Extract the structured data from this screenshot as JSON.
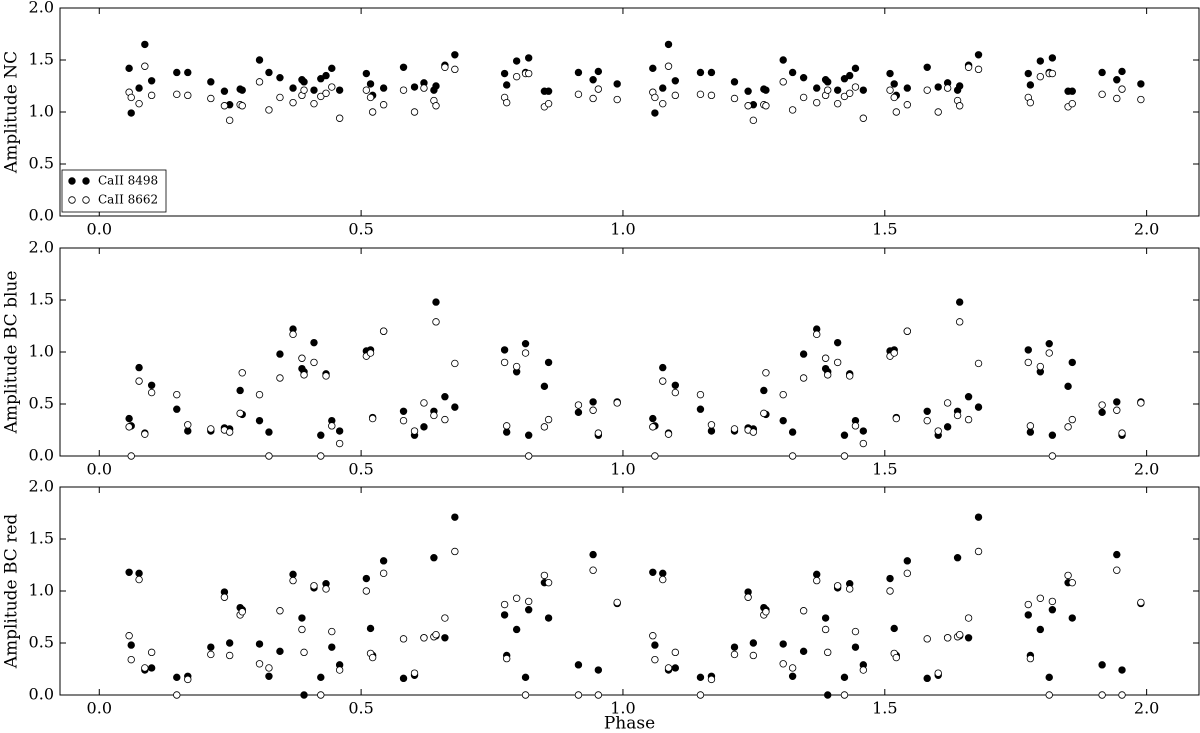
{
  "chart_data": [
    {
      "type": "scatter",
      "ylabel": "Amplitude NC",
      "xlim": [
        -0.075,
        2.1
      ],
      "ylim": [
        0,
        2
      ],
      "xticks": [
        {
          "value": 0,
          "label": "0.0"
        },
        0.5,
        {
          "value": 1,
          "label": "1.0"
        },
        1.5,
        {
          "value": 2,
          "label": "2.0"
        }
      ],
      "yticks": [
        {
          "value": 0,
          "label": "0.0"
        },
        0.5,
        {
          "value": 1,
          "label": "1.0"
        },
        1.5,
        {
          "value": 2,
          "label": "2.0"
        }
      ],
      "legend": "lower left",
      "x": [
        0.057,
        0.061,
        0.076,
        0.087,
        0.1,
        0.148,
        0.169,
        0.213,
        0.239,
        0.249,
        0.269,
        0.273,
        0.306,
        0.324,
        0.345,
        0.37,
        0.387,
        0.391,
        0.41,
        0.423,
        0.433,
        0.444,
        0.459,
        0.51,
        0.518,
        0.522,
        0.543,
        0.581,
        0.602,
        0.62,
        0.639,
        0.643,
        0.66,
        0.679,
        0.774,
        0.778,
        0.797,
        0.814,
        0.82,
        0.85,
        0.858,
        0.915,
        0.943,
        0.953,
        0.989,
        1.057,
        1.061,
        1.076,
        1.087,
        1.1,
        1.148,
        1.169,
        1.213,
        1.239,
        1.249,
        1.269,
        1.273,
        1.306,
        1.324,
        1.345,
        1.37,
        1.387,
        1.391,
        1.41,
        1.423,
        1.433,
        1.444,
        1.459,
        1.51,
        1.518,
        1.522,
        1.543,
        1.581,
        1.602,
        1.62,
        1.639,
        1.643,
        1.66,
        1.679,
        1.774,
        1.778,
        1.797,
        1.814,
        1.82,
        1.85,
        1.858,
        1.915,
        1.943,
        1.953,
        1.989
      ],
      "series": [
        {
          "name": "CaII 8498",
          "color": "#000000",
          "markerfacecolor": "#000000",
          "values": [
            1.42,
            0.99,
            1.23,
            1.65,
            1.3,
            1.38,
            1.38,
            1.29,
            1.2,
            1.07,
            1.22,
            1.21,
            1.5,
            1.38,
            1.33,
            1.23,
            1.31,
            1.29,
            1.21,
            1.32,
            1.35,
            1.42,
            1.21,
            1.37,
            1.27,
            1.16,
            1.23,
            1.43,
            1.24,
            1.28,
            1.21,
            1.25,
            1.45,
            1.55,
            1.37,
            1.26,
            1.49,
            1.38,
            1.52,
            1.2,
            1.2,
            1.38,
            1.31,
            1.39,
            1.27,
            1.42,
            0.99,
            1.23,
            1.65,
            1.3,
            1.38,
            1.38,
            1.29,
            1.2,
            1.07,
            1.22,
            1.21,
            1.5,
            1.38,
            1.33,
            1.23,
            1.31,
            1.29,
            1.21,
            1.32,
            1.35,
            1.42,
            1.21,
            1.37,
            1.27,
            1.16,
            1.23,
            1.43,
            1.24,
            1.28,
            1.21,
            1.25,
            1.45,
            1.55,
            1.37,
            1.26,
            1.49,
            1.38,
            1.52,
            1.2,
            1.2,
            1.38,
            1.31,
            1.39,
            1.27
          ]
        },
        {
          "name": "CaII 8662",
          "color": "#000000",
          "markerfacecolor": "#ffffff",
          "values": [
            1.19,
            1.14,
            1.08,
            1.44,
            1.16,
            1.17,
            1.16,
            1.13,
            1.06,
            0.92,
            1.07,
            1.06,
            1.29,
            1.02,
            1.14,
            1.09,
            1.16,
            1.21,
            1.08,
            1.15,
            1.18,
            1.24,
            0.94,
            1.21,
            1.14,
            1.0,
            1.07,
            1.21,
            1.0,
            1.23,
            1.11,
            1.06,
            1.43,
            1.41,
            1.14,
            1.09,
            1.34,
            1.37,
            1.37,
            1.05,
            1.08,
            1.17,
            1.13,
            1.22,
            1.12,
            1.19,
            1.14,
            1.08,
            1.44,
            1.16,
            1.17,
            1.16,
            1.13,
            1.06,
            0.92,
            1.07,
            1.06,
            1.29,
            1.02,
            1.14,
            1.09,
            1.16,
            1.21,
            1.08,
            1.15,
            1.18,
            1.24,
            0.94,
            1.21,
            1.14,
            1.0,
            1.07,
            1.21,
            1.0,
            1.23,
            1.11,
            1.06,
            1.43,
            1.41,
            1.14,
            1.09,
            1.34,
            1.37,
            1.37,
            1.05,
            1.08,
            1.17,
            1.13,
            1.22,
            1.12
          ]
        }
      ]
    },
    {
      "type": "scatter",
      "ylabel": "Amplitude BC blue",
      "xlim": [
        -0.075,
        2.1
      ],
      "ylim": [
        0,
        2
      ],
      "xticks": [
        {
          "value": 0,
          "label": "0.0"
        },
        0.5,
        {
          "value": 1,
          "label": "1.0"
        },
        1.5,
        {
          "value": 2,
          "label": "2.0"
        }
      ],
      "yticks": [
        {
          "value": 0,
          "label": "0.0"
        },
        0.5,
        {
          "value": 1,
          "label": "1.0"
        },
        1.5,
        {
          "value": 2,
          "label": "2.0"
        }
      ],
      "x": [
        0.057,
        0.061,
        0.076,
        0.087,
        0.1,
        0.148,
        0.169,
        0.213,
        0.239,
        0.249,
        0.269,
        0.273,
        0.306,
        0.324,
        0.345,
        0.37,
        0.387,
        0.391,
        0.41,
        0.423,
        0.433,
        0.444,
        0.459,
        0.51,
        0.518,
        0.522,
        0.543,
        0.581,
        0.602,
        0.62,
        0.639,
        0.643,
        0.66,
        0.679,
        0.774,
        0.778,
        0.797,
        0.814,
        0.82,
        0.85,
        0.858,
        0.915,
        0.943,
        0.953,
        0.989,
        1.057,
        1.061,
        1.076,
        1.087,
        1.1,
        1.148,
        1.169,
        1.213,
        1.239,
        1.249,
        1.269,
        1.273,
        1.306,
        1.324,
        1.345,
        1.37,
        1.387,
        1.391,
        1.41,
        1.423,
        1.433,
        1.444,
        1.459,
        1.51,
        1.518,
        1.522,
        1.543,
        1.581,
        1.602,
        1.62,
        1.639,
        1.643,
        1.66,
        1.679,
        1.774,
        1.778,
        1.797,
        1.814,
        1.82,
        1.85,
        1.858,
        1.915,
        1.943,
        1.953,
        1.989
      ],
      "series": [
        {
          "color": "#000000",
          "markerfacecolor": "#000000",
          "values": [
            0.36,
            0.29,
            0.85,
            0.22,
            0.68,
            0.45,
            0.24,
            0.24,
            0.27,
            0.26,
            0.63,
            0.4,
            0.34,
            0.23,
            0.98,
            1.22,
            0.84,
            0.81,
            1.09,
            0.2,
            0.79,
            0.34,
            0.24,
            1.01,
            1.02,
            0.37,
            1.2,
            0.43,
            0.2,
            0.28,
            0.43,
            1.48,
            0.57,
            0.47,
            1.02,
            0.23,
            0.81,
            1.08,
            0.2,
            0.67,
            0.9,
            0.42,
            0.52,
            0.2,
            0.52,
            0.36,
            0.29,
            0.85,
            0.22,
            0.68,
            0.45,
            0.24,
            0.24,
            0.27,
            0.26,
            0.63,
            0.4,
            0.34,
            0.23,
            0.98,
            1.22,
            0.84,
            0.81,
            1.09,
            0.2,
            0.79,
            0.34,
            0.24,
            1.01,
            1.02,
            0.37,
            1.2,
            0.43,
            0.2,
            0.28,
            0.43,
            1.48,
            0.57,
            0.47,
            1.02,
            0.23,
            0.81,
            1.08,
            0.2,
            0.67,
            0.9,
            0.42,
            0.52,
            0.2,
            0.52
          ]
        },
        {
          "color": "#000000",
          "markerfacecolor": "#ffffff",
          "values": [
            0.28,
            0.0,
            0.72,
            0.21,
            0.61,
            0.59,
            0.3,
            0.26,
            0.25,
            0.23,
            0.41,
            0.8,
            0.59,
            0.0,
            0.75,
            1.17,
            0.94,
            0.78,
            0.9,
            0.0,
            0.77,
            0.29,
            0.12,
            0.96,
            0.99,
            0.36,
            1.2,
            0.34,
            0.24,
            0.51,
            0.39,
            1.29,
            0.35,
            0.89,
            0.9,
            0.29,
            0.86,
            0.99,
            0.0,
            0.28,
            0.35,
            0.49,
            0.44,
            0.22,
            0.51,
            0.28,
            0.0,
            0.72,
            0.21,
            0.61,
            0.59,
            0.3,
            0.26,
            0.25,
            0.23,
            0.41,
            0.8,
            0.59,
            0.0,
            0.75,
            1.17,
            0.94,
            0.78,
            0.9,
            0.0,
            0.77,
            0.29,
            0.12,
            0.96,
            0.99,
            0.36,
            1.2,
            0.34,
            0.24,
            0.51,
            0.39,
            1.29,
            0.35,
            0.89,
            0.9,
            0.29,
            0.86,
            0.99,
            0.0,
            0.28,
            0.35,
            0.49,
            0.44,
            0.22,
            0.51
          ]
        }
      ]
    },
    {
      "type": "scatter",
      "ylabel": "Amplitude BC red",
      "xlabel": "Phase",
      "xlim": [
        -0.075,
        2.1
      ],
      "ylim": [
        0,
        2
      ],
      "xticks": [
        {
          "value": 0,
          "label": "0.0"
        },
        0.5,
        {
          "value": 1,
          "label": "1.0"
        },
        1.5,
        {
          "value": 2,
          "label": "2.0"
        }
      ],
      "yticks": [
        {
          "value": 0,
          "label": "0.0"
        },
        0.5,
        {
          "value": 1,
          "label": "1.0"
        },
        1.5,
        {
          "value": 2,
          "label": "2.0"
        }
      ],
      "x": [
        0.057,
        0.061,
        0.076,
        0.087,
        0.1,
        0.148,
        0.169,
        0.213,
        0.239,
        0.249,
        0.269,
        0.273,
        0.306,
        0.324,
        0.345,
        0.37,
        0.387,
        0.391,
        0.41,
        0.423,
        0.433,
        0.444,
        0.459,
        0.51,
        0.518,
        0.522,
        0.543,
        0.581,
        0.602,
        0.62,
        0.639,
        0.643,
        0.66,
        0.679,
        0.774,
        0.778,
        0.797,
        0.814,
        0.82,
        0.85,
        0.858,
        0.915,
        0.943,
        0.953,
        0.989,
        1.057,
        1.061,
        1.076,
        1.087,
        1.1,
        1.148,
        1.169,
        1.213,
        1.239,
        1.249,
        1.269,
        1.273,
        1.306,
        1.324,
        1.345,
        1.37,
        1.387,
        1.391,
        1.41,
        1.423,
        1.433,
        1.444,
        1.459,
        1.51,
        1.518,
        1.522,
        1.543,
        1.581,
        1.602,
        1.62,
        1.639,
        1.643,
        1.66,
        1.679,
        1.774,
        1.778,
        1.797,
        1.814,
        1.82,
        1.85,
        1.858,
        1.915,
        1.943,
        1.953,
        1.989
      ],
      "series": [
        {
          "color": "#000000",
          "markerfacecolor": "#000000",
          "values": [
            1.18,
            0.48,
            1.17,
            0.24,
            0.26,
            0.17,
            0.18,
            0.46,
            0.99,
            0.5,
            0.84,
            0.82,
            0.49,
            0.18,
            0.42,
            1.16,
            0.74,
            0.0,
            1.03,
            0.17,
            1.07,
            0.46,
            0.29,
            1.12,
            0.64,
            0.38,
            1.29,
            0.16,
            0.19,
            0.55,
            1.32,
            0.57,
            0.55,
            1.71,
            0.77,
            0.38,
            0.63,
            0.17,
            0.82,
            1.08,
            0.74,
            0.29,
            1.35,
            0.24,
            0.88,
            1.18,
            0.48,
            1.17,
            0.24,
            0.26,
            0.17,
            0.18,
            0.46,
            0.99,
            0.5,
            0.84,
            0.82,
            0.49,
            0.18,
            0.42,
            1.16,
            0.74,
            0.0,
            1.03,
            0.17,
            1.07,
            0.46,
            0.29,
            1.12,
            0.64,
            0.38,
            1.29,
            0.16,
            0.19,
            0.55,
            1.32,
            0.57,
            0.55,
            1.71,
            0.77,
            0.38,
            0.63,
            0.17,
            0.82,
            1.08,
            0.74,
            0.29,
            1.35,
            0.24,
            0.88
          ]
        },
        {
          "color": "#000000",
          "markerfacecolor": "#ffffff",
          "values": [
            0.57,
            0.34,
            1.11,
            0.26,
            0.41,
            0.0,
            0.15,
            0.39,
            0.94,
            0.38,
            0.77,
            0.8,
            0.3,
            0.26,
            0.81,
            1.1,
            0.63,
            0.41,
            1.05,
            0.0,
            1.02,
            0.61,
            0.24,
            1.0,
            0.4,
            0.36,
            1.17,
            0.54,
            0.21,
            0.55,
            0.56,
            0.58,
            0.74,
            1.38,
            0.87,
            0.35,
            0.93,
            0.0,
            0.9,
            1.15,
            1.08,
            0.0,
            1.2,
            0.0,
            0.89,
            0.57,
            0.34,
            1.11,
            0.26,
            0.41,
            0.0,
            0.15,
            0.39,
            0.94,
            0.38,
            0.77,
            0.8,
            0.3,
            0.26,
            0.81,
            1.1,
            0.63,
            0.41,
            1.05,
            0.0,
            1.02,
            0.61,
            0.24,
            1.0,
            0.4,
            0.36,
            1.17,
            0.54,
            0.21,
            0.55,
            0.56,
            0.58,
            0.74,
            1.38,
            0.87,
            0.35,
            0.93,
            0.0,
            0.9,
            1.15,
            1.08,
            0.0,
            1.2,
            0.0,
            0.89
          ]
        }
      ]
    }
  ]
}
